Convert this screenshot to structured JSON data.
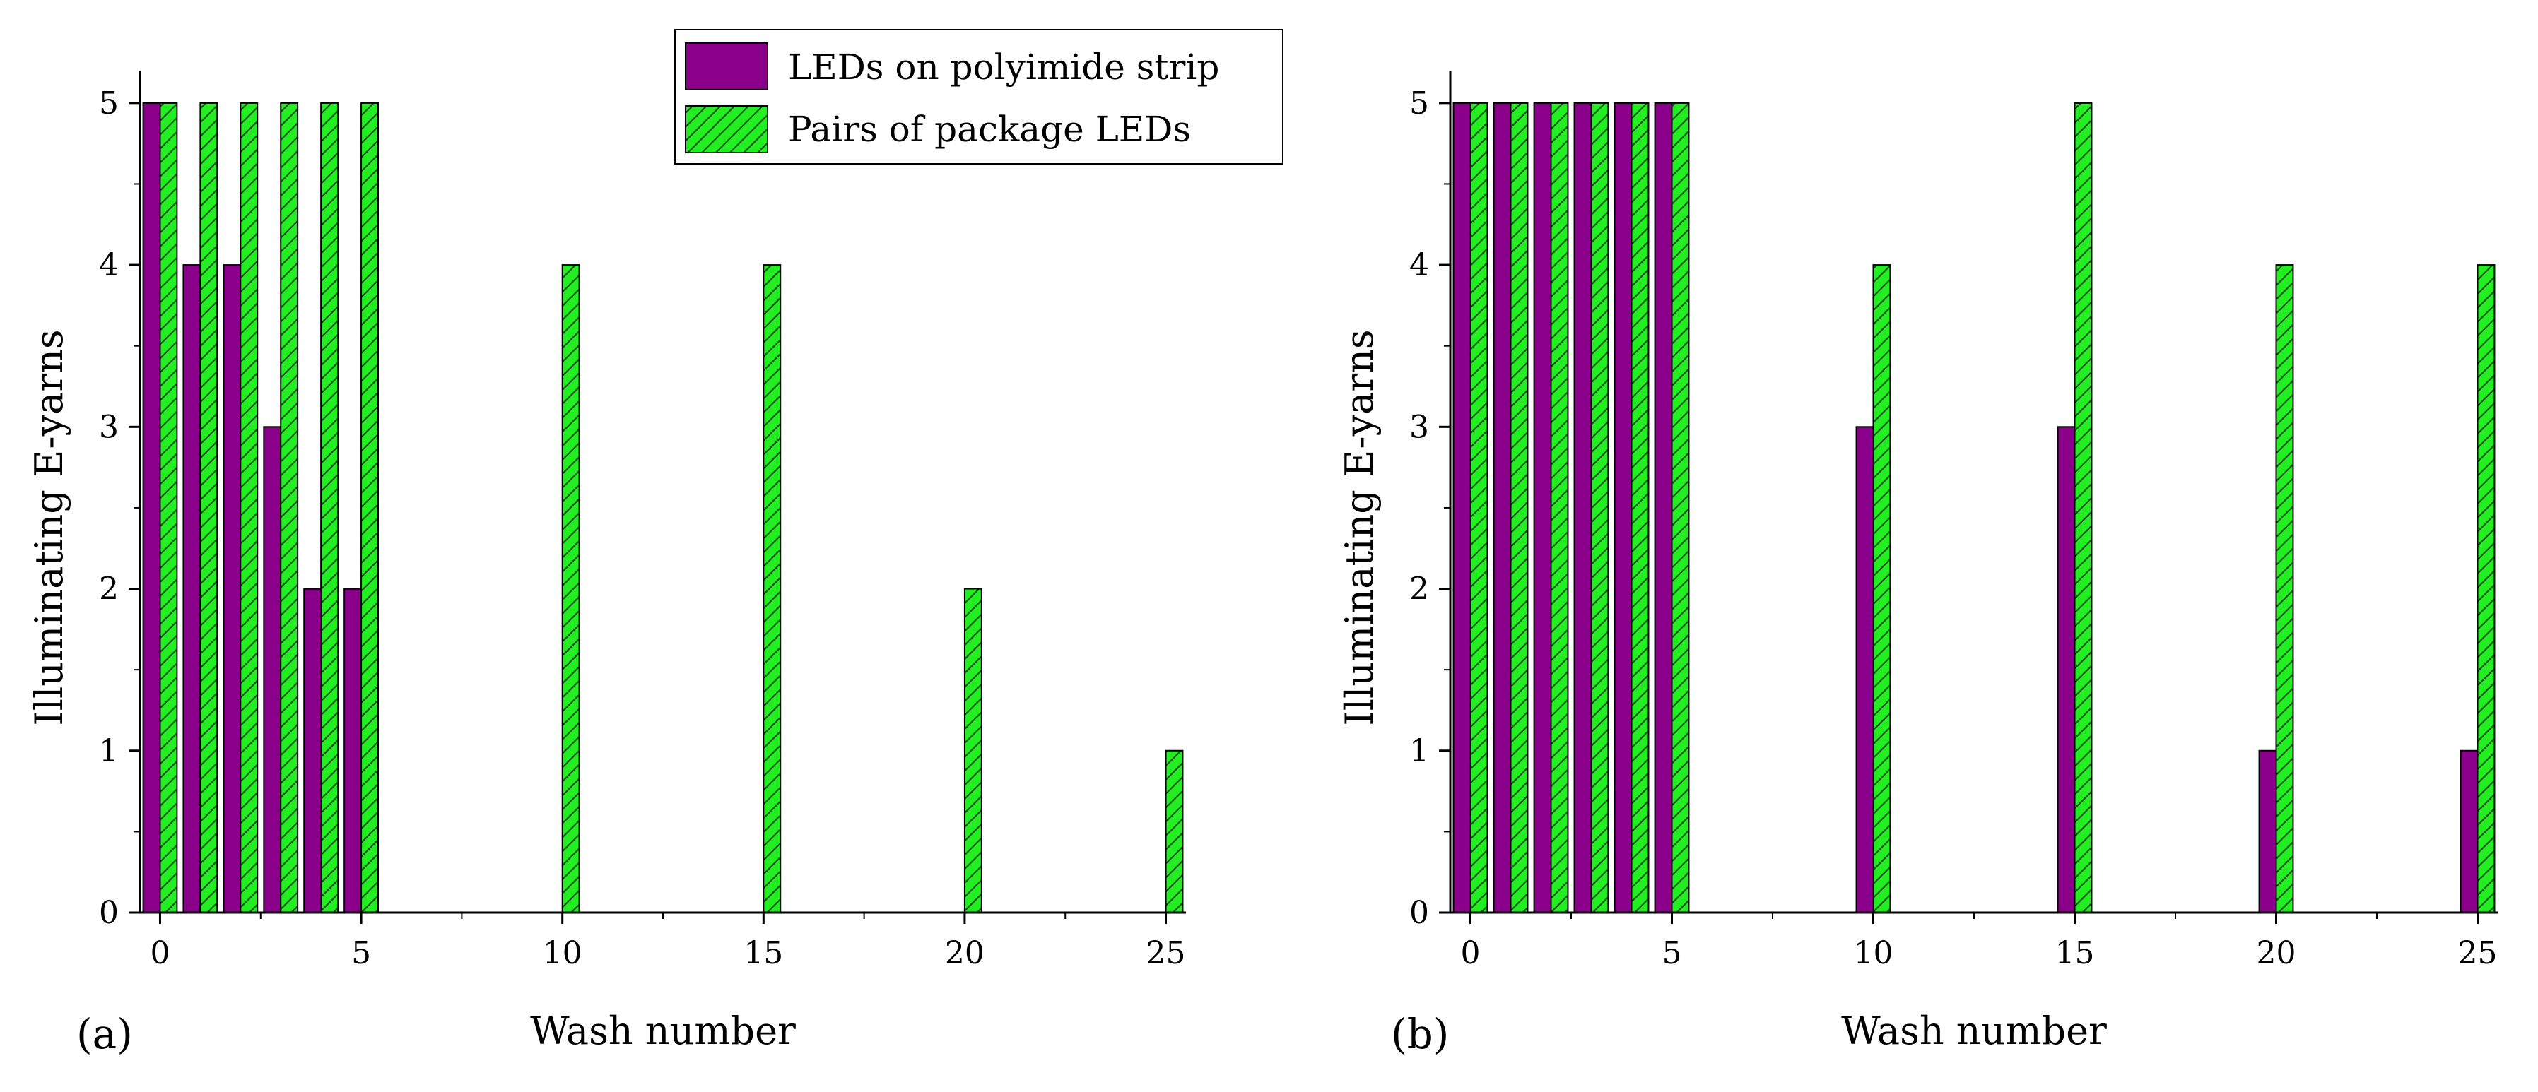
{
  "colors": {
    "series_1": "#8b008b",
    "series_2": "#22ee22",
    "hatch": "#0a4a0a",
    "axis": "#000000"
  },
  "chart_data": [
    {
      "type": "bar",
      "panel_label": "(a)",
      "xlabel": "Wash number",
      "ylabel": "Illuminating E-yarns",
      "xlim": [
        -0.5,
        25.5
      ],
      "ylim": [
        0,
        5.2
      ],
      "x_ticks": [
        0,
        5,
        10,
        15,
        20,
        25
      ],
      "x_tick_labels": [
        "0",
        "5",
        "10",
        "15",
        "20",
        "25"
      ],
      "y_ticks": [
        0,
        1,
        2,
        3,
        4,
        5
      ],
      "y_tick_labels": [
        "0",
        "1",
        "2",
        "3",
        "4",
        "5"
      ],
      "x": [
        0,
        1,
        2,
        3,
        4,
        5,
        10,
        15,
        20,
        25
      ],
      "series": [
        {
          "name": "LEDs on polyimide strip",
          "values": [
            5,
            4,
            4,
            3,
            2,
            2,
            0,
            0,
            0,
            0
          ]
        },
        {
          "name": "Pairs of package LEDs",
          "values": [
            5,
            5,
            5,
            5,
            5,
            5,
            4,
            4,
            2,
            1
          ]
        }
      ],
      "legend": [
        "LEDs on polyimide strip",
        "Pairs of package LEDs"
      ],
      "legend_position": "top-right"
    },
    {
      "type": "bar",
      "panel_label": "(b)",
      "xlabel": "Wash number",
      "ylabel": "Illuminating E-yarns",
      "xlim": [
        -0.5,
        25.5
      ],
      "ylim": [
        0,
        5.2
      ],
      "x_ticks": [
        0,
        5,
        10,
        15,
        20,
        25
      ],
      "x_tick_labels": [
        "0",
        "5",
        "10",
        "15",
        "20",
        "25"
      ],
      "y_ticks": [
        0,
        1,
        2,
        3,
        4,
        5
      ],
      "y_tick_labels": [
        "0",
        "1",
        "2",
        "3",
        "4",
        "5"
      ],
      "x": [
        0,
        1,
        2,
        3,
        4,
        5,
        10,
        15,
        20,
        25
      ],
      "series": [
        {
          "name": "LEDs on polyimide strip",
          "values": [
            5,
            5,
            5,
            5,
            5,
            5,
            3,
            3,
            1,
            1
          ]
        },
        {
          "name": "Pairs of package LEDs",
          "values": [
            5,
            5,
            5,
            5,
            5,
            5,
            4,
            5,
            4,
            4
          ]
        }
      ]
    }
  ]
}
